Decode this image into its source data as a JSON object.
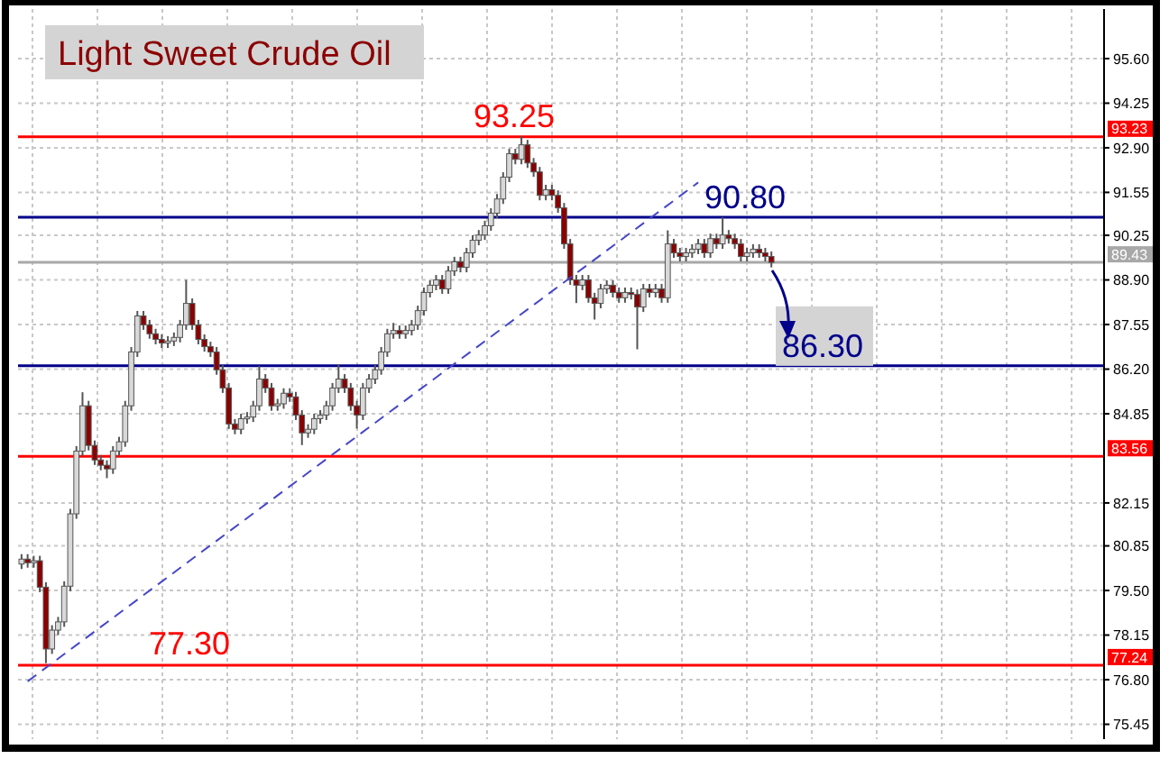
{
  "chart_data": {
    "type": "candlestick",
    "title": "Light Sweet Crude Oil",
    "categories": [
      null,
      null,
      null,
      null,
      null,
      null,
      null,
      null,
      null,
      null,
      null,
      null,
      null,
      null,
      null,
      null,
      null,
      null,
      null,
      null,
      null,
      null,
      null,
      null,
      null,
      null,
      null,
      null,
      null,
      null,
      null,
      null,
      null,
      null,
      null,
      null,
      null,
      null,
      null,
      null,
      null,
      null,
      null,
      null,
      null,
      null,
      null,
      null,
      null,
      null,
      null,
      null,
      null,
      null,
      null,
      null,
      null,
      null,
      null,
      null,
      null,
      null,
      null,
      null,
      null,
      null,
      null,
      null,
      null,
      null,
      null,
      null,
      null,
      null,
      null,
      null,
      null,
      null,
      null,
      null,
      null,
      null,
      null,
      null,
      null,
      null,
      null,
      null,
      null,
      null,
      null,
      null,
      null,
      null,
      null,
      null,
      null,
      null,
      null,
      null,
      null,
      null,
      null,
      null,
      null,
      null,
      null,
      null,
      null,
      null,
      null,
      null,
      null,
      null,
      null,
      null,
      null,
      null,
      null,
      null,
      null,
      null,
      null,
      null,
      null,
      null,
      null,
      null,
      null,
      null,
      null,
      null,
      null,
      null,
      null,
      null,
      null,
      null,
      null,
      null,
      null,
      null,
      null,
      null,
      null,
      null,
      null,
      null,
      null,
      null,
      null,
      null,
      null,
      null,
      null,
      null,
      null,
      null,
      null,
      null,
      null,
      null,
      null,
      null,
      null,
      null,
      null,
      null,
      null,
      null,
      null,
      null,
      null,
      null,
      null,
      null,
      null,
      null
    ],
    "ylim": [
      75.0,
      97.1
    ],
    "yticks": [
      75.45,
      {
        "value": 76.8,
        "label": "76.80"
      },
      78.15,
      {
        "value": 79.5,
        "label": "79.50"
      },
      80.85,
      82.15,
      84.85,
      {
        "value": 86.2,
        "label": "86.20"
      },
      87.55,
      {
        "value": 88.9,
        "label": "88.90"
      },
      90.25,
      91.55,
      {
        "value": 92.9,
        "label": "92.90"
      },
      94.25,
      {
        "value": 95.6,
        "label": "95.60"
      }
    ],
    "grid": true,
    "tick_labels": "y",
    "series": [
      {
        "type": "candlestick",
        "ohlc": [
          [
            80.3,
            80.6,
            80.15,
            80.45
          ],
          [
            80.45,
            80.6,
            80.19,
            80.34
          ],
          [
            80.34,
            80.55,
            80.19,
            80.4
          ],
          [
            80.4,
            80.55,
            79.45,
            79.6
          ],
          [
            79.6,
            79.75,
            77.3,
            77.73
          ],
          [
            77.73,
            78.45,
            77.58,
            78.3
          ],
          [
            78.3,
            78.7,
            78.15,
            78.55
          ],
          [
            78.55,
            79.78,
            78.4,
            79.63
          ],
          [
            79.63,
            81.97,
            79.48,
            81.82
          ],
          [
            81.82,
            83.87,
            81.67,
            83.72
          ],
          [
            83.72,
            85.5,
            83.57,
            85.09
          ],
          [
            85.09,
            85.24,
            83.74,
            83.89
          ],
          [
            83.89,
            84.04,
            83.3,
            83.45
          ],
          [
            83.45,
            83.6,
            83.14,
            83.29
          ],
          [
            83.29,
            83.44,
            82.9,
            83.18
          ],
          [
            83.18,
            83.87,
            83.03,
            83.72
          ],
          [
            83.72,
            84.15,
            83.57,
            84.0
          ],
          [
            84.0,
            85.24,
            83.85,
            85.09
          ],
          [
            85.09,
            86.87,
            84.94,
            86.72
          ],
          [
            86.72,
            87.96,
            86.57,
            87.81
          ],
          [
            87.81,
            87.96,
            87.39,
            87.54
          ],
          [
            87.54,
            87.69,
            87.12,
            87.27
          ],
          [
            87.27,
            87.42,
            86.95,
            87.1
          ],
          [
            87.1,
            87.25,
            86.84,
            86.99
          ],
          [
            86.99,
            87.2,
            86.84,
            87.05
          ],
          [
            87.05,
            87.31,
            86.9,
            87.16
          ],
          [
            87.16,
            87.69,
            87.01,
            87.54
          ],
          [
            87.54,
            88.9,
            87.39,
            88.19
          ],
          [
            88.19,
            88.34,
            87.39,
            87.54
          ],
          [
            87.54,
            87.69,
            86.95,
            87.1
          ],
          [
            87.1,
            87.25,
            86.73,
            86.88
          ],
          [
            86.88,
            87.03,
            86.57,
            86.72
          ],
          [
            86.72,
            86.87,
            86.03,
            86.18
          ],
          [
            86.18,
            86.33,
            85.48,
            85.63
          ],
          [
            85.63,
            85.78,
            84.39,
            84.54
          ],
          [
            84.54,
            84.69,
            84.23,
            84.38
          ],
          [
            84.38,
            84.85,
            84.23,
            84.7
          ],
          [
            84.7,
            84.9,
            84.55,
            84.75
          ],
          [
            84.75,
            85.24,
            84.6,
            85.09
          ],
          [
            85.09,
            86.3,
            84.94,
            85.9
          ],
          [
            85.9,
            86.05,
            85.48,
            85.63
          ],
          [
            85.63,
            85.78,
            84.94,
            85.09
          ],
          [
            85.09,
            85.3,
            84.94,
            85.15
          ],
          [
            85.15,
            85.62,
            85.0,
            85.47
          ],
          [
            85.47,
            85.62,
            85.21,
            85.36
          ],
          [
            85.36,
            85.51,
            84.66,
            84.81
          ],
          [
            84.81,
            84.96,
            83.9,
            84.27
          ],
          [
            84.27,
            84.53,
            84.12,
            84.38
          ],
          [
            84.38,
            84.85,
            84.23,
            84.7
          ],
          [
            84.7,
            84.96,
            84.55,
            84.81
          ],
          [
            84.81,
            85.24,
            84.66,
            85.09
          ],
          [
            85.09,
            85.78,
            84.94,
            85.63
          ],
          [
            85.63,
            86.35,
            85.48,
            85.9
          ],
          [
            85.9,
            86.05,
            85.48,
            85.63
          ],
          [
            85.63,
            85.78,
            84.94,
            85.09
          ],
          [
            85.09,
            85.24,
            84.4,
            84.81
          ],
          [
            84.81,
            85.78,
            84.66,
            85.63
          ],
          [
            85.63,
            86.05,
            85.48,
            85.9
          ],
          [
            85.9,
            86.33,
            85.75,
            86.18
          ],
          [
            86.18,
            86.87,
            86.03,
            86.72
          ],
          [
            86.72,
            87.42,
            86.57,
            87.27
          ],
          [
            87.27,
            87.6,
            87.12,
            87.37
          ],
          [
            87.37,
            87.52,
            87.12,
            87.27
          ],
          [
            87.27,
            87.52,
            87.12,
            87.37
          ],
          [
            87.37,
            87.69,
            87.22,
            87.54
          ],
          [
            87.54,
            88.12,
            87.39,
            87.97
          ],
          [
            87.97,
            88.67,
            87.82,
            88.52
          ],
          [
            88.52,
            88.89,
            88.37,
            88.74
          ],
          [
            88.74,
            89.05,
            88.59,
            88.9
          ],
          [
            88.9,
            89.05,
            88.48,
            88.63
          ],
          [
            88.63,
            89.32,
            88.48,
            89.17
          ],
          [
            89.17,
            89.6,
            89.02,
            89.45
          ],
          [
            89.45,
            89.6,
            89.13,
            89.28
          ],
          [
            89.28,
            89.87,
            89.13,
            89.72
          ],
          [
            89.72,
            90.25,
            89.57,
            90.1
          ],
          [
            90.1,
            90.41,
            89.95,
            90.26
          ],
          [
            90.26,
            90.69,
            90.11,
            90.54
          ],
          [
            90.54,
            91.07,
            90.39,
            90.92
          ],
          [
            90.92,
            91.5,
            90.77,
            91.35
          ],
          [
            91.35,
            92.16,
            91.2,
            92.01
          ],
          [
            92.01,
            92.87,
            91.86,
            92.72
          ],
          [
            92.72,
            92.87,
            92.4,
            92.55
          ],
          [
            92.55,
            93.25,
            92.4,
            92.99
          ],
          [
            92.99,
            93.14,
            92.29,
            92.44
          ],
          [
            92.44,
            92.59,
            92.02,
            92.17
          ],
          [
            92.17,
            92.32,
            91.31,
            91.46
          ],
          [
            91.46,
            91.78,
            91.31,
            91.63
          ],
          [
            91.63,
            91.78,
            91.31,
            91.46
          ],
          [
            91.46,
            91.61,
            90.93,
            91.08
          ],
          [
            91.08,
            91.23,
            89.84,
            89.99
          ],
          [
            89.99,
            90.14,
            88.75,
            88.9
          ],
          [
            88.9,
            89.05,
            88.2,
            88.74
          ],
          [
            88.74,
            89.05,
            88.59,
            88.9
          ],
          [
            88.9,
            89.05,
            88.21,
            88.36
          ],
          [
            88.36,
            88.51,
            87.7,
            88.19
          ],
          [
            88.19,
            88.78,
            88.04,
            88.63
          ],
          [
            88.63,
            88.89,
            88.48,
            88.74
          ],
          [
            88.74,
            88.89,
            88.37,
            88.52
          ],
          [
            88.52,
            88.67,
            88.21,
            88.36
          ],
          [
            88.36,
            88.67,
            88.21,
            88.52
          ],
          [
            88.52,
            88.67,
            88.31,
            88.46
          ],
          [
            88.46,
            88.61,
            86.8,
            88.08
          ],
          [
            88.08,
            88.78,
            87.93,
            88.63
          ],
          [
            88.63,
            88.78,
            88.37,
            88.52
          ],
          [
            88.52,
            88.78,
            88.37,
            88.63
          ],
          [
            88.63,
            88.78,
            88.21,
            88.36
          ],
          [
            88.36,
            90.4,
            88.21,
            89.99
          ],
          [
            89.99,
            90.14,
            89.57,
            89.72
          ],
          [
            89.72,
            89.87,
            89.46,
            89.61
          ],
          [
            89.61,
            89.87,
            89.46,
            89.72
          ],
          [
            89.72,
            89.98,
            89.57,
            89.83
          ],
          [
            89.83,
            90.14,
            89.68,
            89.99
          ],
          [
            89.99,
            90.14,
            89.57,
            89.72
          ],
          [
            89.72,
            90.3,
            89.57,
            90.15
          ],
          [
            90.15,
            90.3,
            89.84,
            89.99
          ],
          [
            89.99,
            90.8,
            89.84,
            90.26
          ],
          [
            90.26,
            90.41,
            90.0,
            90.15
          ],
          [
            90.15,
            90.3,
            89.84,
            89.99
          ],
          [
            89.99,
            90.14,
            89.46,
            89.61
          ],
          [
            89.61,
            89.87,
            89.46,
            89.72
          ],
          [
            89.72,
            89.98,
            89.57,
            89.83
          ],
          [
            89.83,
            89.98,
            89.57,
            89.72
          ],
          [
            89.72,
            89.87,
            89.46,
            89.61
          ],
          [
            89.61,
            89.76,
            89.28,
            89.43
          ],
          null,
          null,
          null,
          null,
          null,
          null,
          null,
          null,
          null,
          null,
          null,
          null,
          null,
          null,
          null,
          null,
          null,
          null,
          null,
          null,
          null,
          null,
          null,
          null,
          null,
          null,
          null,
          null,
          null,
          null,
          null,
          null,
          null,
          null,
          null,
          null,
          null,
          null,
          null,
          null,
          null,
          null,
          null,
          null,
          null,
          null,
          null,
          null,
          null,
          null,
          null,
          null,
          null,
          null
        ]
      },
      {
        "type": "line",
        "color": "#4646c8",
        "line_style": "dashed",
        "values": [
          null,
          76.75,
          null,
          null,
          null,
          null,
          null,
          null,
          null,
          null,
          null,
          null,
          null,
          null,
          null,
          null,
          null,
          null,
          null,
          null,
          null,
          null,
          null,
          null,
          null,
          null,
          null,
          null,
          null,
          null,
          null,
          null,
          null,
          null,
          null,
          null,
          null,
          null,
          null,
          null,
          null,
          null,
          null,
          null,
          null,
          null,
          null,
          null,
          null,
          null,
          null,
          null,
          null,
          null,
          null,
          null,
          null,
          null,
          null,
          null,
          null,
          null,
          null,
          null,
          null,
          null,
          null,
          null,
          null,
          null,
          null,
          null,
          null,
          null,
          null,
          null,
          null,
          null,
          null,
          null,
          null,
          null,
          null,
          null,
          null,
          null,
          null,
          null,
          null,
          null,
          null,
          null,
          null,
          null,
          null,
          null,
          null,
          null,
          null,
          null,
          null,
          null,
          null,
          null,
          null,
          null,
          null,
          null,
          null,
          null,
          null,
          91.85,
          null,
          null,
          null,
          null,
          null,
          null,
          null,
          null,
          null,
          null,
          null,
          null,
          null,
          null,
          null,
          null,
          null,
          null,
          null,
          null,
          null,
          null,
          null,
          null,
          null,
          null,
          null,
          null,
          null,
          null,
          null,
          null,
          null,
          null,
          null,
          null,
          null,
          null,
          null,
          null,
          null,
          null,
          null,
          null,
          null,
          null,
          null,
          null,
          null,
          null,
          null,
          null,
          null,
          null,
          null,
          null,
          null,
          null,
          null,
          null,
          null,
          null,
          null,
          null,
          null,
          null
        ]
      }
    ],
    "ref_lines": [
      {
        "axis": "y",
        "value": 93.23,
        "label": "93.23",
        "color": "#ff0000"
      },
      {
        "axis": "y",
        "value": 83.56,
        "label": "83.56",
        "color": "#ff0000"
      },
      {
        "axis": "y",
        "value": 77.24,
        "label": "77.24",
        "color": "#ff0000"
      },
      {
        "axis": "y",
        "value": 89.43,
        "label": "89.43",
        "color": "#a8a8a8"
      },
      {
        "axis": "y",
        "value": 90.8,
        "color": "#00008b"
      },
      {
        "axis": "y",
        "value": 86.3,
        "color": "#00008b"
      }
    ],
    "annotations": [
      {
        "text": "93.25",
        "y": 93.25
      },
      {
        "text": "77.30",
        "y": 77.3
      },
      {
        "text": "90.80",
        "y": 90.8
      },
      {
        "text": "86.30",
        "y": 86.3
      }
    ]
  }
}
